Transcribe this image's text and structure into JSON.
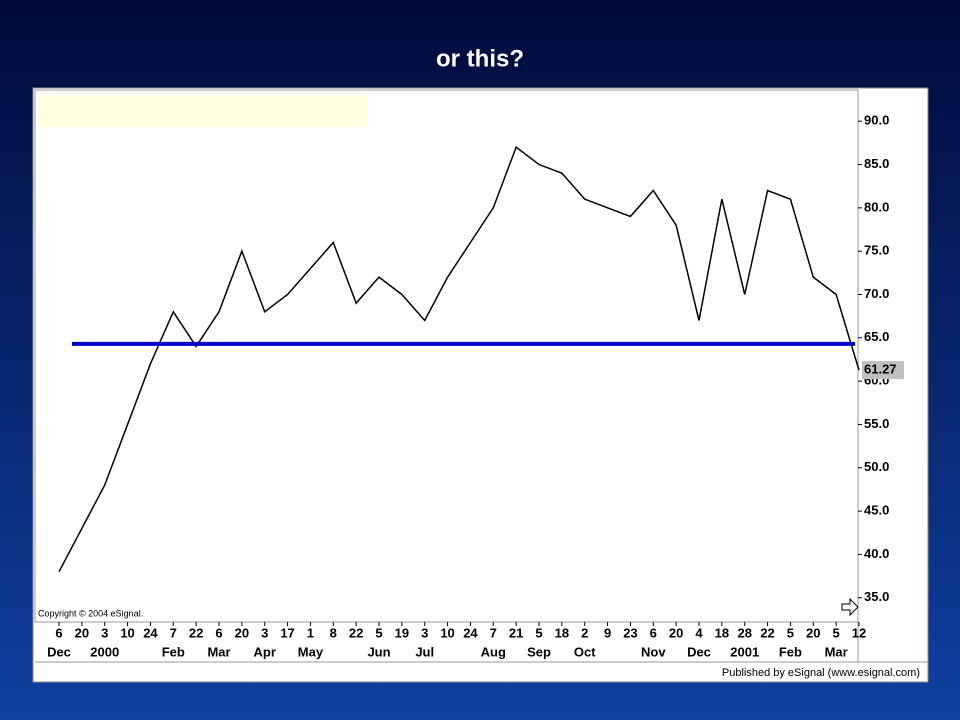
{
  "chart_data": {
    "type": "line",
    "title": "or this?",
    "categories": [
      "6",
      "20",
      "3",
      "10",
      "24",
      "7",
      "22",
      "6",
      "20",
      "3",
      "17",
      "1",
      "8",
      "22",
      "5",
      "19",
      "3",
      "10",
      "24",
      "7",
      "21",
      "5",
      "18",
      "2",
      "9",
      "23",
      "6",
      "20",
      "4",
      "18",
      "28",
      "22",
      "5",
      "20",
      "5",
      "12"
    ],
    "category_groups": [
      {
        "label": "Dec",
        "index": 0
      },
      {
        "label": "2000",
        "index": 2
      },
      {
        "label": "Feb",
        "index": 5
      },
      {
        "label": "Mar",
        "index": 7
      },
      {
        "label": "Apr",
        "index": 9
      },
      {
        "label": "May",
        "index": 11
      },
      {
        "label": "Jun",
        "index": 14
      },
      {
        "label": "Jul",
        "index": 16
      },
      {
        "label": "Aug",
        "index": 19
      },
      {
        "label": "Sep",
        "index": 21
      },
      {
        "label": "Oct",
        "index": 23
      },
      {
        "label": "Nov",
        "index": 26
      },
      {
        "label": "Dec",
        "index": 28
      },
      {
        "label": "2001",
        "index": 30
      },
      {
        "label": "Feb",
        "index": 32
      },
      {
        "label": "Mar",
        "index": 34
      }
    ],
    "values": [
      38,
      43,
      48,
      55,
      62,
      68,
      64,
      68,
      75,
      68,
      70,
      73,
      76,
      69,
      72,
      70,
      67,
      72,
      76,
      80,
      87,
      85,
      84,
      81,
      80,
      79,
      82,
      78,
      67,
      81,
      70,
      82,
      81,
      72,
      70,
      61.27
    ],
    "color": "#000000",
    "ylim": [
      32.2,
      93.6
    ],
    "yticks": [
      {
        "value": 35,
        "label": "35.0"
      },
      {
        "value": 40,
        "label": "40.0"
      },
      {
        "value": 45,
        "label": "45.0"
      },
      {
        "value": 50,
        "label": "50.0"
      },
      {
        "value": 55,
        "label": "55.0"
      },
      {
        "value": 60,
        "label": "60.0"
      },
      {
        "value": 65,
        "label": "65.0"
      },
      {
        "value": 70,
        "label": "70.0"
      },
      {
        "value": 75,
        "label": "75.0"
      },
      {
        "value": 80,
        "label": "80.0"
      },
      {
        "value": 85,
        "label": "85.0"
      },
      {
        "value": 90,
        "label": "90.0"
      }
    ],
    "reference_line": {
      "value": 64.3,
      "color": "#0000cc"
    },
    "last_price": {
      "value": 61.27,
      "label": "61.27"
    },
    "copyright": "Copyright © 2004 eSignal.",
    "footer": "Published by eSignal (www.esignal.com)"
  }
}
